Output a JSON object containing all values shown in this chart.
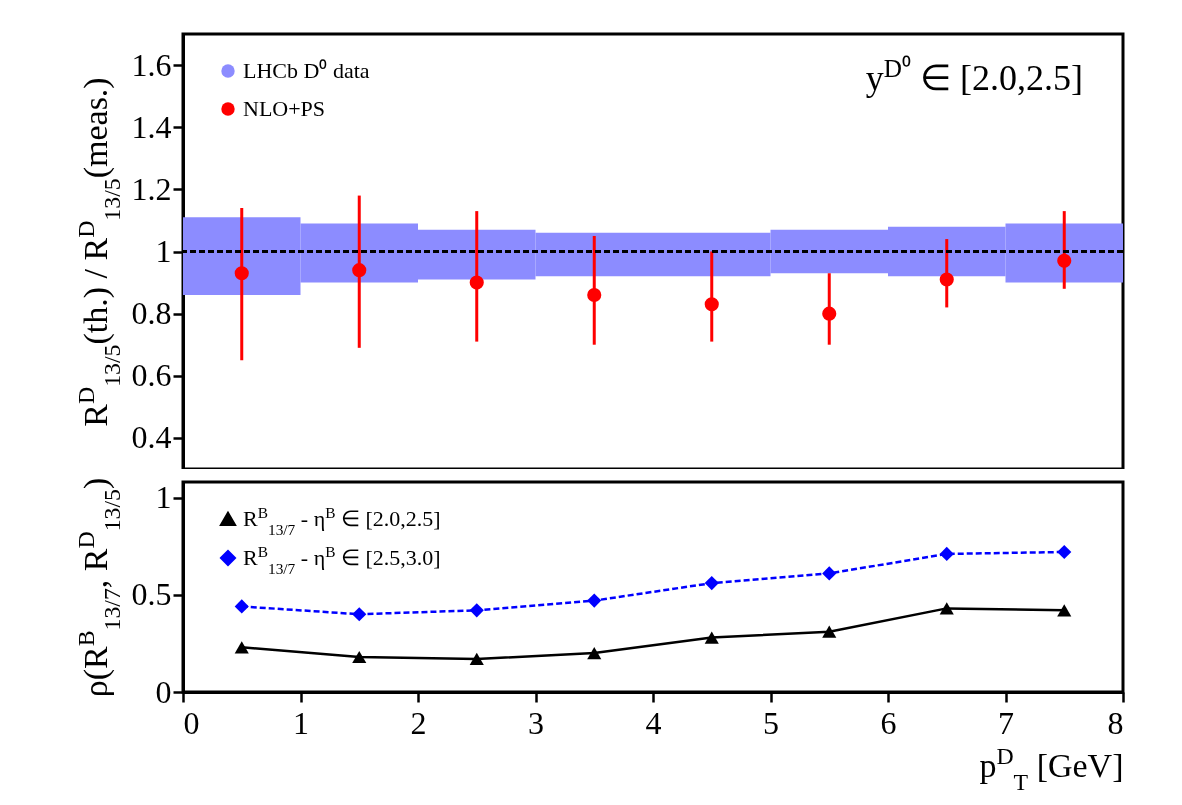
{
  "chart_data": [
    {
      "type": "scatter",
      "ylabel": "R$^{D}$$_{13/5}$(th.) / R$^{D}$$_{13/5}$(meas.)",
      "xlim": [
        0,
        8
      ],
      "xticks": [
        0,
        1,
        2,
        3,
        4,
        5,
        6,
        7,
        8
      ],
      "ylim": [
        0.3,
        1.7
      ],
      "yticks": [
        0.4,
        0.6,
        0.8,
        1,
        1.2,
        1.4,
        1.6
      ],
      "tick_labels": "y",
      "legend": "top left",
      "annotations": [
        "y$^{D⁰}$ ∈ [2.0,2.5]"
      ],
      "ref_lines": [
        {
          "axis": "y",
          "value": 1,
          "line_style": "dashed",
          "color": "#000000"
        }
      ],
      "series": [
        {
          "name": "LHCb D⁰ data",
          "type": "bar",
          "color": "#8c8cff",
          "x": [
            0.5,
            1.5,
            2.5,
            3.5,
            4.5,
            5.5,
            6.5,
            7.5
          ],
          "base": [
            0.86,
            0.9,
            0.91,
            0.92,
            0.92,
            0.93,
            0.92,
            0.9
          ],
          "values": [
            0.25,
            0.19,
            0.16,
            0.14,
            0.14,
            0.14,
            0.16,
            0.19
          ]
        },
        {
          "name": "NLO+PS",
          "color": "#ff0000",
          "marker": "circle",
          "x": [
            0.5,
            1.5,
            2.5,
            3.5,
            4.5,
            5.5,
            6.5,
            7.5
          ],
          "values": [
            0.93,
            0.94,
            0.9,
            0.86,
            0.83,
            0.8,
            0.91,
            0.97
          ],
          "errors": [
            [
              0.65,
              1.14
            ],
            [
              0.69,
              1.18
            ],
            [
              0.71,
              1.13
            ],
            [
              0.7,
              1.05
            ],
            [
              0.71,
              1.0
            ],
            [
              0.7,
              0.93
            ],
            [
              0.82,
              1.04
            ],
            [
              0.88,
              1.13
            ]
          ]
        }
      ]
    },
    {
      "type": "line",
      "xlabel": "p$^{D}$$_{T}$ [GeV]",
      "ylabel": "ρ(R$^{B}$$_{13/7}$, R$^{D}$$_{13/5}$)",
      "xlim": [
        0,
        8
      ],
      "xticks": [
        0,
        1,
        2,
        3,
        4,
        5,
        6,
        7,
        8
      ],
      "ylim": [
        0,
        1.08
      ],
      "yticks": [
        0,
        0.5,
        1
      ],
      "legend": "top left",
      "series": [
        {
          "name": "R$^{B}$$_{13/7}$ - η$^{B}$ ∈ [2.0,2.5]",
          "color": "#000000",
          "marker": "triangle",
          "line_style": "solid",
          "x": [
            0.5,
            1.5,
            2.5,
            3.5,
            4.5,
            5.5,
            6.5,
            7.5
          ],
          "values": [
            0.23,
            0.18,
            0.17,
            0.2,
            0.28,
            0.31,
            0.43,
            0.42
          ]
        },
        {
          "name": "R$^{B}$$_{13/7}$ - η$^{B}$ ∈ [2.5,3.0]",
          "color": "#0000ff",
          "marker": "diamond",
          "line_style": "dashed",
          "x": [
            0.5,
            1.5,
            2.5,
            3.5,
            4.5,
            5.5,
            6.5,
            7.5
          ],
          "values": [
            0.44,
            0.4,
            0.42,
            0.47,
            0.56,
            0.61,
            0.71,
            0.72
          ]
        }
      ]
    }
  ]
}
